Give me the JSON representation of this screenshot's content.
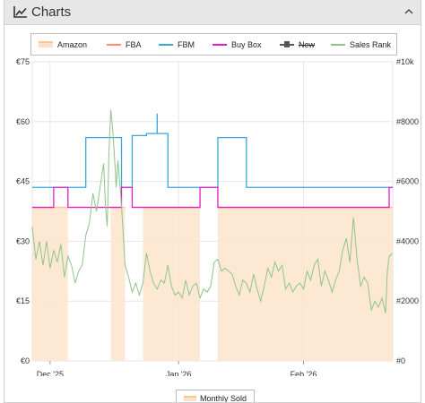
{
  "panel": {
    "title": "Charts",
    "collapse_icon": "chevron-up-icon",
    "chart_icon": "line-chart-icon"
  },
  "legend": [
    {
      "label": "Amazon",
      "color": "#f5c894",
      "style": "area",
      "strike": false
    },
    {
      "label": "FBA",
      "color": "#ff8f6b",
      "style": "line",
      "strike": false
    },
    {
      "label": "FBM",
      "color": "#3aa7d8",
      "style": "line",
      "strike": false
    },
    {
      "label": "Buy Box",
      "color": "#e020c0",
      "style": "line",
      "strike": false
    },
    {
      "label": "New",
      "color": "#555555",
      "style": "line-square",
      "strike": true
    },
    {
      "label": "Sales Rank",
      "color": "#8fc48a",
      "style": "line",
      "strike": false
    }
  ],
  "legend2": {
    "label": "Monthly Sold"
  },
  "chart_data": {
    "type": "line",
    "x_labels": [
      "Dec '25",
      "Jan '26",
      "Feb '26"
    ],
    "x_label_days": [
      5,
      41,
      76
    ],
    "xlim_days": [
      0,
      101
    ],
    "y_left": {
      "ticks": [
        "€0",
        "€15",
        "€30",
        "€45",
        "€60",
        "€75"
      ],
      "values": [
        0,
        15,
        30,
        45,
        60,
        75
      ],
      "ylim": [
        0,
        75
      ]
    },
    "y_right": {
      "ticks": [
        "#0",
        "#2000",
        "#4000",
        "#6000",
        "#8000",
        "#10k"
      ],
      "values": [
        0,
        2000,
        4000,
        6000,
        8000,
        10000
      ],
      "ylim": [
        0,
        10000
      ]
    },
    "grid": true,
    "series": [
      {
        "name": "Amazon",
        "axis": "left",
        "kind": "area",
        "color": "#f5c894",
        "segments": [
          [
            [
              0,
              38.5
            ],
            [
              10,
              38.5
            ]
          ],
          [
            [
              22,
              38.5
            ],
            [
              26,
              38.5
            ]
          ],
          [
            [
              31,
              38.5
            ],
            [
              47,
              38.5
            ]
          ],
          [
            [
              52,
              38.5
            ],
            [
              101,
              38.5
            ]
          ]
        ]
      },
      {
        "name": "FBM",
        "axis": "left",
        "kind": "step",
        "color": "#3aa7d8",
        "points": [
          [
            0,
            43.5
          ],
          [
            15,
            43.5
          ],
          [
            15,
            56
          ],
          [
            25,
            56
          ],
          [
            25,
            43.5
          ],
          [
            28,
            43.5
          ],
          [
            28,
            56.5
          ],
          [
            32,
            56.5
          ],
          [
            32,
            57
          ],
          [
            35,
            57
          ],
          [
            35,
            62
          ],
          [
            35,
            57
          ],
          [
            38,
            57
          ],
          [
            38,
            43.5
          ],
          [
            52,
            43.5
          ],
          [
            52,
            56
          ],
          [
            60,
            56
          ],
          [
            60,
            43.5
          ],
          [
            101,
            43.5
          ]
        ]
      },
      {
        "name": "Buy Box",
        "axis": "left",
        "kind": "step",
        "color": "#e020c0",
        "points": [
          [
            0,
            38.5
          ],
          [
            6,
            38.5
          ],
          [
            6,
            43.5
          ],
          [
            10,
            43.5
          ],
          [
            10,
            38.5
          ],
          [
            25,
            38.5
          ],
          [
            25,
            43.5
          ],
          [
            28,
            43.5
          ],
          [
            28,
            38.5
          ],
          [
            47,
            38.5
          ],
          [
            47,
            43.5
          ],
          [
            52,
            43.5
          ],
          [
            52,
            38.5
          ],
          [
            100,
            38.5
          ],
          [
            100,
            43.5
          ],
          [
            101,
            43.5
          ]
        ]
      },
      {
        "name": "Sales Rank",
        "axis": "right",
        "kind": "step",
        "color": "#8fc48a",
        "points": [
          [
            0,
            4500
          ],
          [
            1,
            3400
          ],
          [
            2,
            4000
          ],
          [
            3,
            3200
          ],
          [
            4,
            4000
          ],
          [
            5,
            3100
          ],
          [
            6,
            3700
          ],
          [
            7,
            3300
          ],
          [
            8,
            3900
          ],
          [
            9,
            2800
          ],
          [
            10,
            3500
          ],
          [
            11,
            3200
          ],
          [
            12,
            2600
          ],
          [
            13,
            3000
          ],
          [
            14,
            3200
          ],
          [
            15,
            4200
          ],
          [
            16,
            4600
          ],
          [
            17,
            5600
          ],
          [
            18,
            5000
          ],
          [
            19,
            5800
          ],
          [
            20,
            6600
          ],
          [
            20.5,
            5200
          ],
          [
            21,
            4500
          ],
          [
            21.5,
            7000
          ],
          [
            22,
            8400
          ],
          [
            22.5,
            7800
          ],
          [
            23,
            6900
          ],
          [
            23.5,
            5800
          ],
          [
            24,
            6700
          ],
          [
            25,
            5200
          ],
          [
            26,
            3200
          ],
          [
            27,
            2800
          ],
          [
            28,
            2300
          ],
          [
            29,
            2600
          ],
          [
            30,
            2200
          ],
          [
            31,
            2600
          ],
          [
            32,
            3600
          ],
          [
            33,
            3000
          ],
          [
            34,
            2600
          ],
          [
            35,
            2400
          ],
          [
            36,
            2700
          ],
          [
            37,
            2600
          ],
          [
            38,
            3200
          ],
          [
            39,
            2500
          ],
          [
            40,
            2200
          ],
          [
            41,
            2300
          ],
          [
            42,
            2100
          ],
          [
            43,
            2700
          ],
          [
            44,
            2200
          ],
          [
            45,
            2500
          ],
          [
            46,
            2600
          ],
          [
            47,
            2100
          ],
          [
            48,
            2400
          ],
          [
            49,
            2300
          ],
          [
            50,
            2500
          ],
          [
            51,
            3300
          ],
          [
            52,
            3400
          ],
          [
            53,
            3000
          ],
          [
            54,
            3100
          ],
          [
            55,
            3000
          ],
          [
            56,
            2900
          ],
          [
            57,
            2500
          ],
          [
            58,
            2200
          ],
          [
            59,
            2700
          ],
          [
            60,
            2600
          ],
          [
            61,
            2300
          ],
          [
            62,
            2900
          ],
          [
            63,
            2400
          ],
          [
            64,
            2000
          ],
          [
            65,
            2500
          ],
          [
            66,
            3100
          ],
          [
            67,
            2800
          ],
          [
            68,
            3300
          ],
          [
            69,
            3000
          ],
          [
            70,
            3200
          ],
          [
            71,
            2400
          ],
          [
            72,
            2600
          ],
          [
            73,
            2300
          ],
          [
            74,
            2500
          ],
          [
            75,
            2600
          ],
          [
            76,
            2400
          ],
          [
            77,
            3000
          ],
          [
            78,
            2700
          ],
          [
            79,
            3200
          ],
          [
            80,
            3400
          ],
          [
            81,
            2500
          ],
          [
            82,
            3000
          ],
          [
            83,
            2700
          ],
          [
            84,
            2300
          ],
          [
            85,
            2700
          ],
          [
            86,
            3000
          ],
          [
            87,
            3700
          ],
          [
            88,
            4100
          ],
          [
            89,
            3300
          ],
          [
            90,
            4800
          ],
          [
            91,
            3400
          ],
          [
            92,
            2500
          ],
          [
            93,
            2800
          ],
          [
            94,
            2600
          ],
          [
            95,
            1700
          ],
          [
            96,
            2000
          ],
          [
            97,
            1800
          ],
          [
            98,
            2100
          ],
          [
            99,
            1600
          ],
          [
            99.5,
            3000
          ],
          [
            100,
            3500
          ],
          [
            101,
            3600
          ]
        ]
      }
    ]
  }
}
